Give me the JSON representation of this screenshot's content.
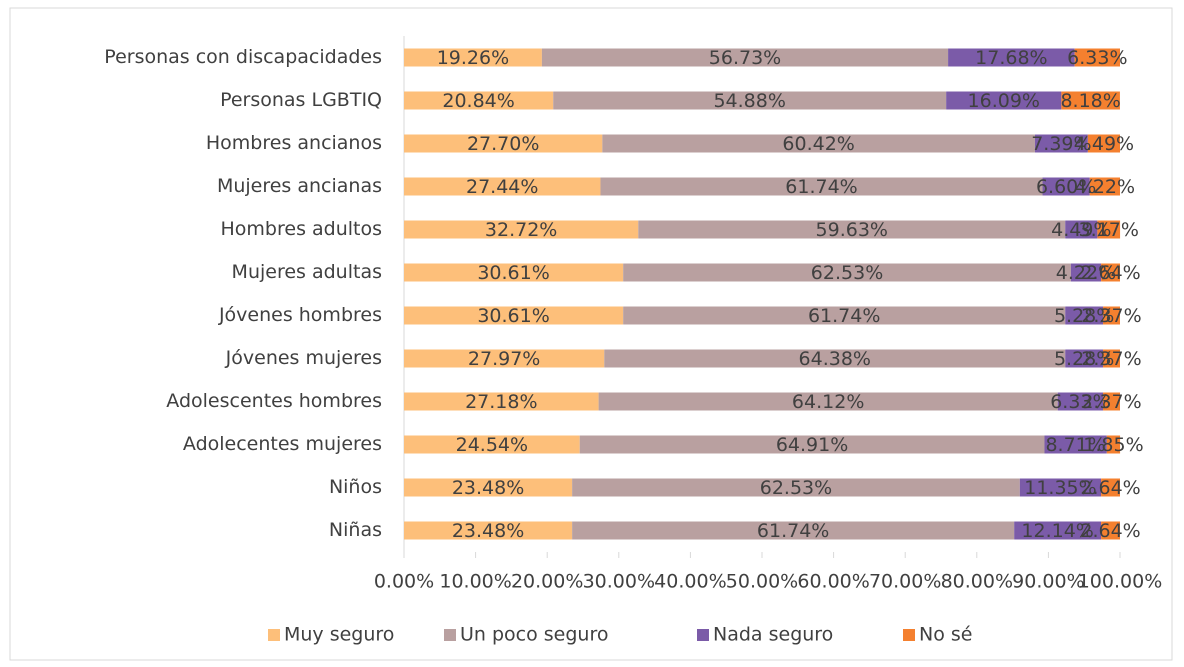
{
  "chart_data": {
    "type": "stacked_bar_horizontal",
    "categories": [
      "Personas con discapacidades",
      "Personas LGBTIQ",
      "Hombres ancianos",
      "Mujeres ancianas",
      "Hombres adultos",
      "Mujeres adultas",
      "Jóvenes hombres",
      "Jóvenes mujeres",
      "Adolescentes hombres",
      "Adolecentes mujeres",
      "Niños",
      "Niñas"
    ],
    "series": [
      {
        "name": "Muy seguro",
        "color": "#fdbf7a",
        "values": [
          19.26,
          20.84,
          27.7,
          27.44,
          32.72,
          30.61,
          30.61,
          27.97,
          27.18,
          24.54,
          23.48,
          23.48
        ],
        "value_labels": [
          "19.26%",
          "20.84%",
          "27.70%",
          "27.44%",
          "32.72%",
          "30.61%",
          "30.61%",
          "27.97%",
          "27.18%",
          "24.54%",
          "23.48%",
          "23.48%"
        ]
      },
      {
        "name": "Un poco seguro",
        "color": "#b9a0a0",
        "values": [
          56.73,
          54.88,
          60.42,
          61.74,
          59.63,
          62.53,
          61.74,
          64.38,
          64.12,
          64.91,
          62.53,
          61.74
        ],
        "value_labels": [
          "56.73%",
          "54.88%",
          "60.42%",
          "61.74%",
          "59.63%",
          "62.53%",
          "61.74%",
          "64.38%",
          "64.12%",
          "64.91%",
          "62.53%",
          "61.74%"
        ]
      },
      {
        "name": "Nada seguro",
        "color": "#7b5ba8",
        "values": [
          17.68,
          16.09,
          7.39,
          6.6,
          4.49,
          4.22,
          5.28,
          5.28,
          6.33,
          8.71,
          11.35,
          12.14
        ],
        "value_labels": [
          "17.68%",
          "16.09%",
          "7.39%",
          "6.60%",
          "4.49%",
          "4.22%",
          "5.28%",
          "5.28%",
          "6.33%",
          "8.71%",
          "11.35%",
          "12.14%"
        ]
      },
      {
        "name": "No sé",
        "color": "#f4802f",
        "values": [
          6.33,
          8.18,
          4.49,
          4.22,
          3.17,
          2.64,
          2.37,
          2.37,
          2.37,
          1.85,
          2.64,
          2.64
        ],
        "value_labels": [
          "6.33%",
          "8.18%",
          "4.49%",
          "4.22%",
          "3.17%",
          "2.64%",
          "2.37%",
          "2.37%",
          "2.37%",
          "1.85%",
          "2.64%",
          "2.64%"
        ]
      }
    ],
    "xlim": [
      0,
      100
    ],
    "xticks": [
      {
        "value": 0,
        "label": "0.00%"
      },
      {
        "value": 10,
        "label": "10.00%"
      },
      {
        "value": 20,
        "label": "20.00%"
      },
      {
        "value": 30,
        "label": "30.00%"
      },
      {
        "value": 40,
        "label": "40.00%"
      },
      {
        "value": 50,
        "label": "50.00%"
      },
      {
        "value": 60,
        "label": "60.00%"
      },
      {
        "value": 70,
        "label": "70.00%"
      },
      {
        "value": 80,
        "label": "80.00%"
      },
      {
        "value": 90,
        "label": "90.00%"
      },
      {
        "value": 100,
        "label": "100.00%"
      }
    ],
    "legend": "bottom"
  }
}
